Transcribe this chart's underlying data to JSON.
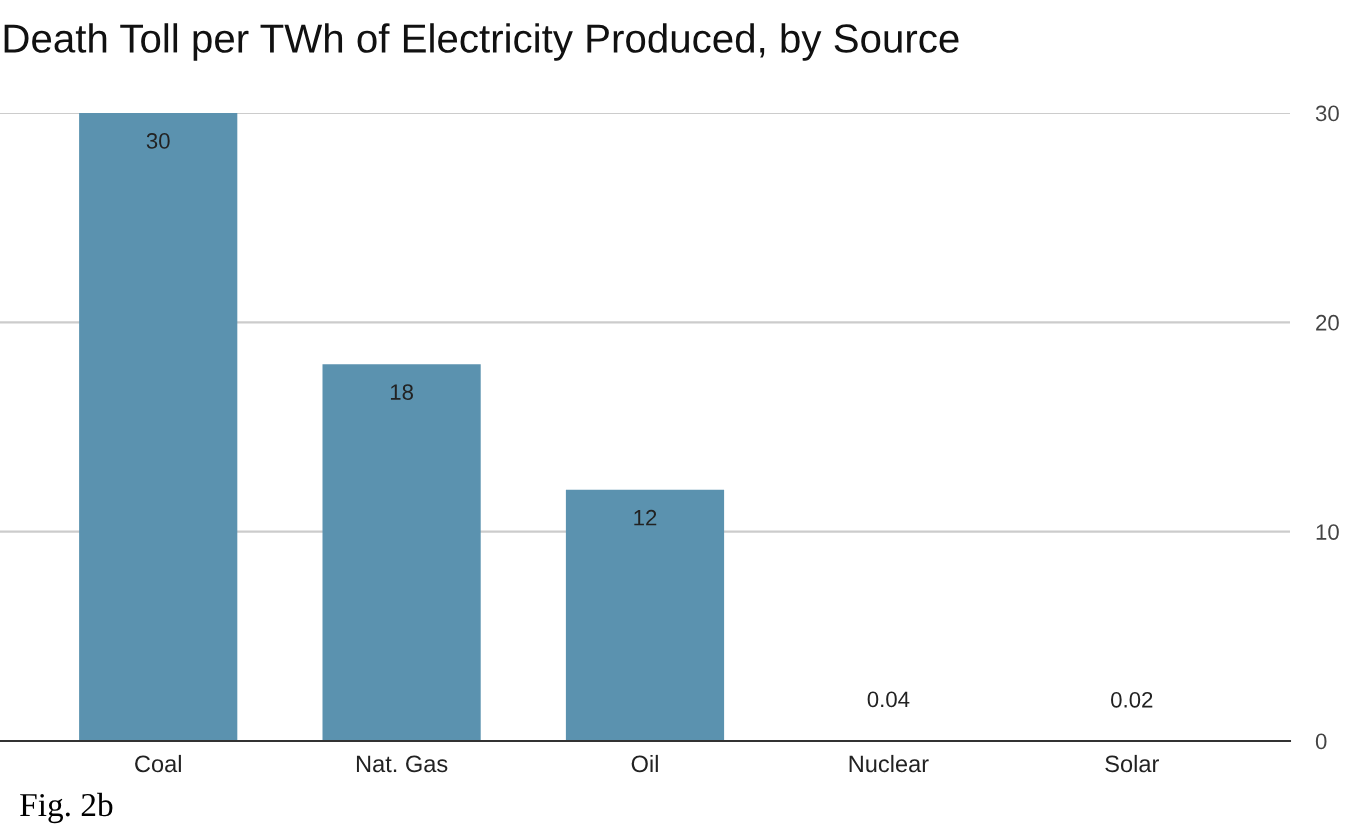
{
  "chart_data": {
    "type": "bar",
    "title": "Death Toll per TWh of Electricity Produced, by Source",
    "categories": [
      "Coal",
      "Nat. Gas",
      "Oil",
      "Nuclear",
      "Solar"
    ],
    "values": [
      30,
      18,
      12,
      0.04,
      0.02
    ],
    "color": "#5b92af",
    "ylim": [
      0,
      30
    ],
    "yticks": [
      0,
      10,
      20,
      30
    ],
    "grid": "y",
    "data_labels": true,
    "annotations": [
      "Fig. 2b"
    ]
  }
}
